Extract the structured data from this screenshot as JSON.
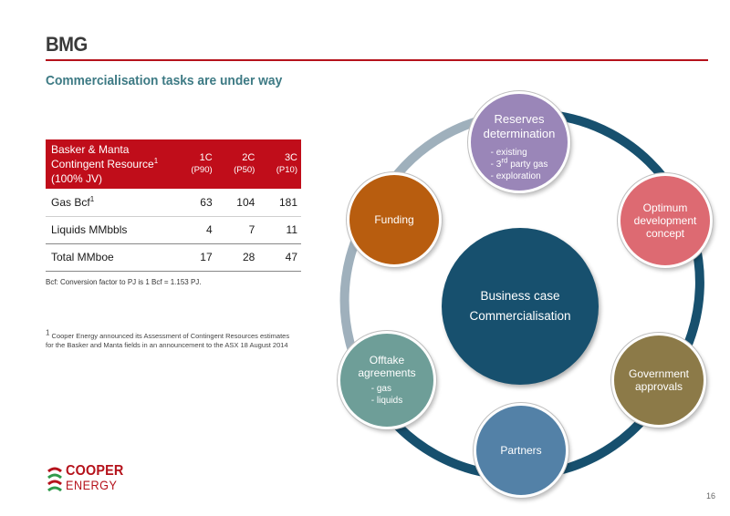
{
  "header": {
    "title": "BMG",
    "subtitle": "Commercialisation tasks are under way"
  },
  "table": {
    "header_label": "Basker & Manta Contingent Resource",
    "header_label_sup": "1",
    "header_label_suffix": "(100% JV)",
    "columns": [
      {
        "label": "1C",
        "sub": "(P90)"
      },
      {
        "label": "2C",
        "sub": "(P50)"
      },
      {
        "label": "3C",
        "sub": "(P10)"
      }
    ],
    "rows": [
      {
        "label": "Gas Bcf",
        "sup": "1",
        "values": [
          "63",
          "104",
          "181"
        ]
      },
      {
        "label": "Liquids MMbbls",
        "sup": "",
        "values": [
          "4",
          "7",
          "11"
        ]
      },
      {
        "label": "Total MMboe",
        "sup": "",
        "values": [
          "17",
          "28",
          "47"
        ]
      }
    ]
  },
  "notes": {
    "conversion": "Bcf: Conversion factor to PJ is 1 Bcf = 1.153 PJ.",
    "footnote_mark": "1",
    "footnote": "Cooper Energy announced its Assessment of Contingent Resources estimates for the Basker and Manta fields in an announcement to the ASX 18 August 2014"
  },
  "diagram": {
    "center": {
      "line1": "Business case",
      "line2": "Commercialisation",
      "color": "#17506e"
    },
    "reserves": {
      "title": "Reserves determination",
      "items": [
        "- existing",
        "-  3",
        "- exploration"
      ],
      "item2_sup": "rd",
      "item2_rest": " party gas",
      "color": "#9a86b8"
    },
    "optimum": {
      "title": "Optimum development concept",
      "color": "#dd6a72"
    },
    "government": {
      "title": "Government approvals",
      "color": "#8c7a48"
    },
    "partners": {
      "title": "Partners",
      "color": "#5381a7"
    },
    "offtake": {
      "title": "Offtake agreements",
      "items": [
        "- gas",
        "- liquids"
      ],
      "color": "#6e9e98"
    },
    "funding": {
      "title": "Funding",
      "color": "#b85d0f"
    }
  },
  "footer": {
    "logo_line1": "COOPER",
    "logo_line2": "ENERGY",
    "page_number": "16"
  },
  "colors": {
    "brand_red": "#b5121b",
    "table_header": "#c00d1a",
    "subtitle_teal": "#3d7a84"
  }
}
